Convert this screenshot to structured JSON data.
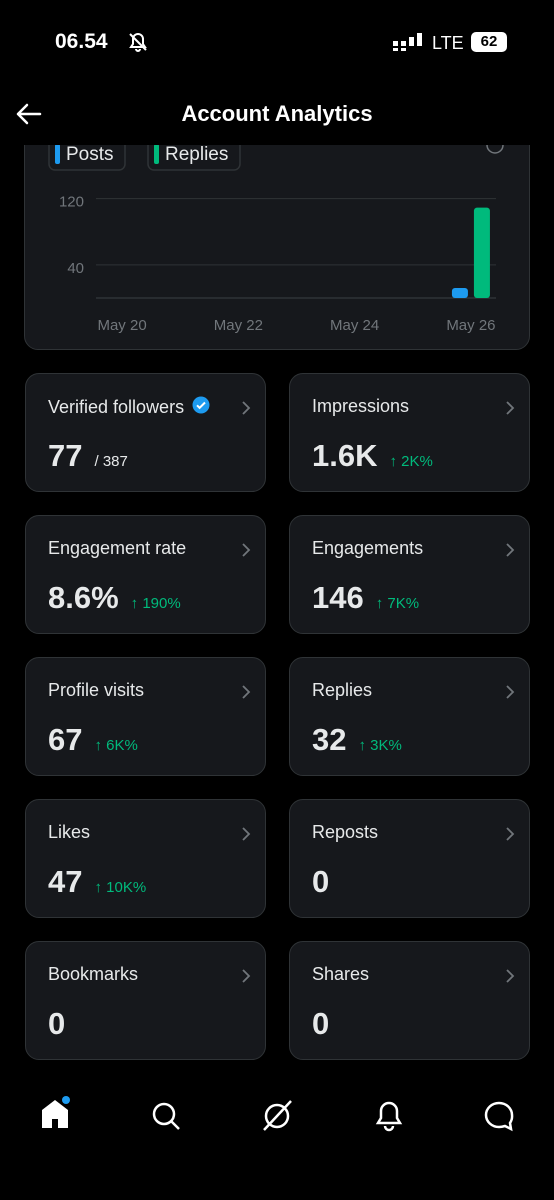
{
  "status_bar": {
    "time": "06.54",
    "network": "LTE",
    "battery": "62"
  },
  "header": {
    "title": "Account Analytics"
  },
  "chart_data": {
    "type": "bar",
    "categories": [
      "May 20",
      null,
      "May 22",
      null,
      "May 24",
      null,
      "May 26"
    ],
    "series": [
      {
        "name": "Posts",
        "color": "#1d9bf0",
        "values": [
          0,
          0,
          0,
          0,
          0,
          0,
          12
        ]
      },
      {
        "name": "Replies",
        "color": "#00ba7c",
        "values": [
          0,
          0,
          0,
          0,
          0,
          0,
          109
        ]
      }
    ],
    "ylim": [
      0,
      140
    ],
    "yticks": [
      40,
      120
    ],
    "grid": true
  },
  "cards": [
    {
      "label": "Verified followers",
      "value": "77",
      "total": "/ 387"
    },
    {
      "label": "Impressions",
      "value": "1.6K",
      "change": "↑ 2K%"
    },
    {
      "label": "Engagement rate",
      "value": "8.6%",
      "change": "↑ 190%"
    },
    {
      "label": "Engagements",
      "value": "146",
      "change": "↑ 7K%"
    },
    {
      "label": "Profile visits",
      "value": "67",
      "change": "↑ 6K%"
    },
    {
      "label": "Replies",
      "value": "32",
      "change": "↑ 3K%"
    },
    {
      "label": "Likes",
      "value": "47",
      "change": "↑ 10K%"
    },
    {
      "label": "Reposts",
      "value": "0"
    },
    {
      "label": "Bookmarks",
      "value": "0"
    },
    {
      "label": "Shares",
      "value": "0"
    }
  ]
}
